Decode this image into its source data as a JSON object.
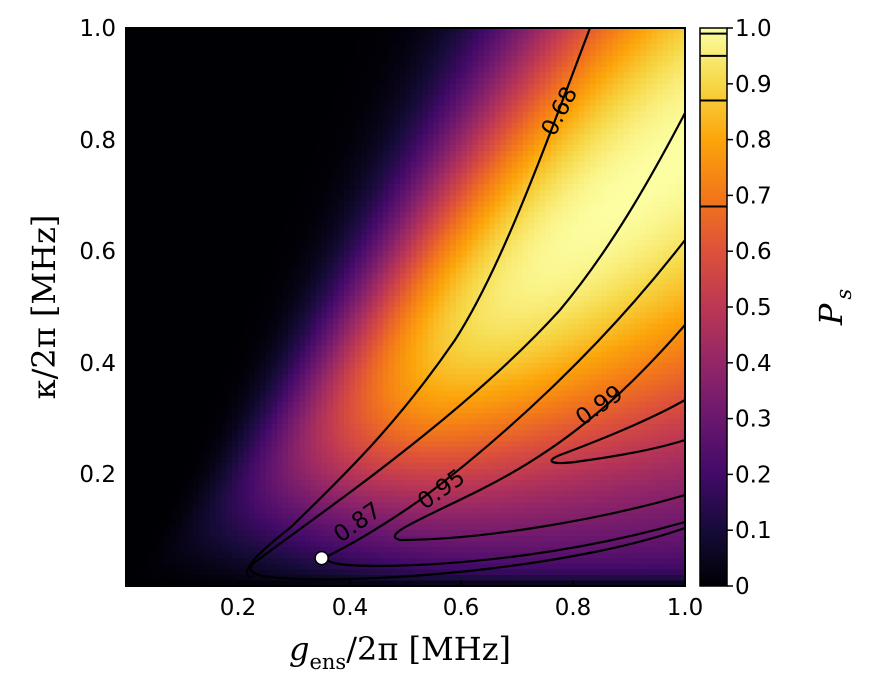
{
  "chart_data": {
    "type": "heatmap",
    "title": "",
    "xlabel_main": "g",
    "xlabel_sub": "ens",
    "xlabel_rest": "/2π [MHz]",
    "ylabel": "κ/2π [MHz]",
    "colorbar_label": "P",
    "colorbar_label_sub": "s",
    "colormap": "inferno",
    "xlim": [
      0.0,
      1.0
    ],
    "ylim": [
      0.0,
      1.0
    ],
    "zlim": [
      0.0,
      1.0
    ],
    "x_ticks": [
      "0.2",
      "0.4",
      "0.6",
      "0.8",
      "1.0"
    ],
    "x_tick_values": [
      0.2,
      0.4,
      0.6,
      0.8,
      1.0
    ],
    "y_ticks": [
      "0.2",
      "0.4",
      "0.6",
      "0.8",
      "1.0"
    ],
    "y_tick_values": [
      0.2,
      0.4,
      0.6,
      0.8,
      1.0
    ],
    "colorbar_ticks": [
      "0",
      "0.1",
      "0.2",
      "0.3",
      "0.4",
      "0.5",
      "0.6",
      "0.7",
      "0.8",
      "0.9",
      "1.0"
    ],
    "colorbar_tick_values": [
      0,
      0.1,
      0.2,
      0.3,
      0.4,
      0.5,
      0.6,
      0.7,
      0.8,
      0.9,
      1.0
    ],
    "contour_levels": [
      0.68,
      0.87,
      0.95,
      0.99
    ],
    "contour_labels": [
      "0.68",
      "0.87",
      "0.95",
      "0.99"
    ],
    "marker": {
      "x": 0.35,
      "y": 0.05,
      "color": "#ffffff"
    }
  }
}
